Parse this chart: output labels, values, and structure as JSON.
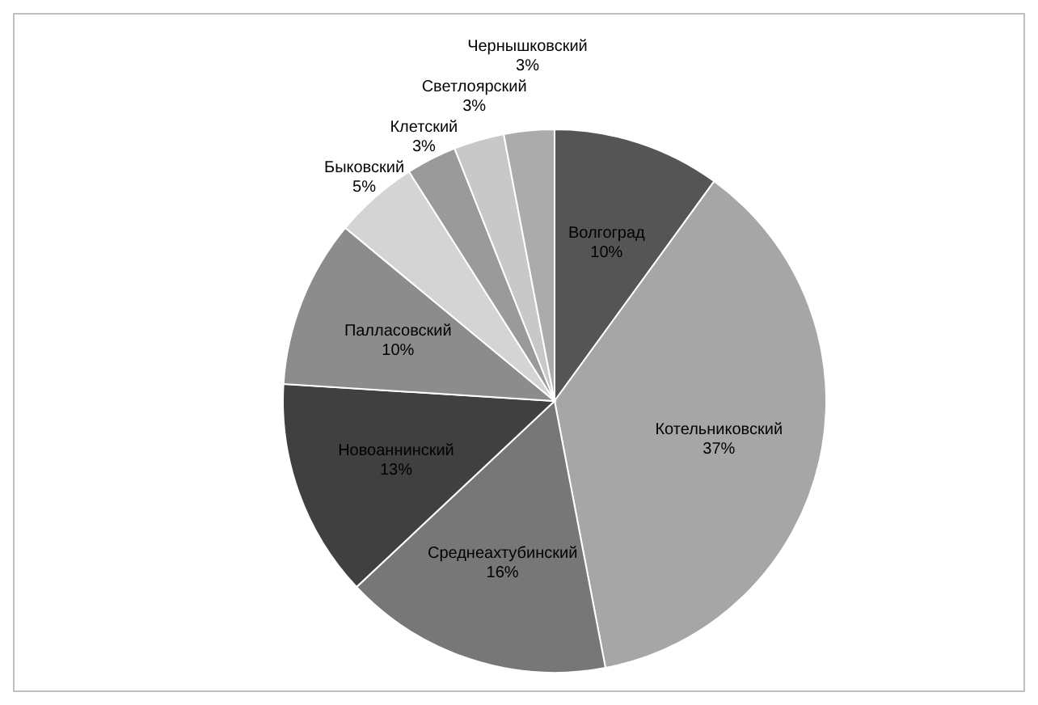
{
  "chart_data": {
    "type": "pie",
    "categories": [
      "Волгоград",
      "Котельниковский",
      "Среднеахтубинский",
      "Новоаннинский",
      "Палласовский",
      "Быковский",
      "Клетский",
      "Светлоярский",
      "Чернышковский"
    ],
    "values": [
      10,
      37,
      16,
      13,
      10,
      5,
      3,
      3,
      3
    ],
    "value_labels": [
      "10%",
      "37%",
      "16%",
      "13%",
      "10%",
      "5%",
      "3%",
      "3%",
      "3%"
    ],
    "colors": [
      "#555555",
      "#a6a6a6",
      "#777777",
      "#404040",
      "#8c8c8c",
      "#d4d4d4",
      "#9a9a9a",
      "#c8c8c8",
      "#ababab"
    ],
    "legend": false
  }
}
